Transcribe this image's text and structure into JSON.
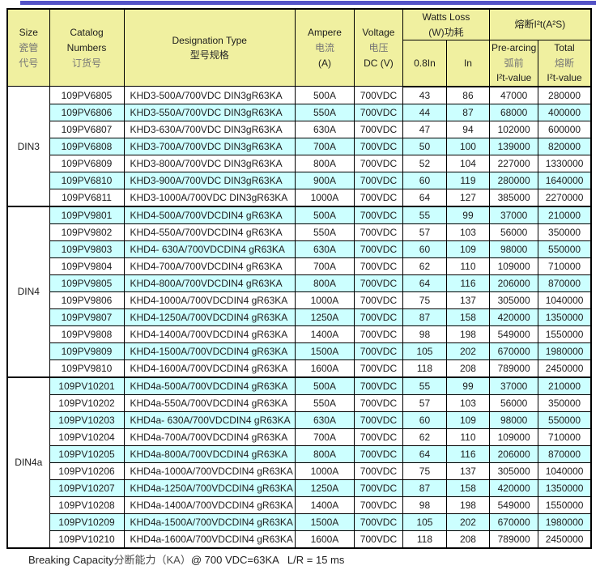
{
  "colors": {
    "top_bar": "#5453C7",
    "header_bg": "#F0F0A0",
    "row_alt_bg": "#CCFFFF",
    "border": "#000000"
  },
  "table": {
    "header": {
      "size": {
        "en": "Size",
        "cn1": "瓷管",
        "cn2": "代号"
      },
      "catalog": {
        "en1": "Catalog",
        "en2": "Numbers",
        "cn": "订货号"
      },
      "designation": {
        "en": "Designation Type",
        "cn": "型号规格"
      },
      "ampere": {
        "en": "Ampere",
        "cn": "电流",
        "unit": "(A)"
      },
      "voltage": {
        "en": "Voltage",
        "cn": "电压",
        "unit": "DC (V)"
      },
      "watts_loss": {
        "en": "Watts Loss",
        "cn": "(W)功耗",
        "sub_08in": "0.8In",
        "sub_in": "In"
      },
      "i2t": {
        "group": "熔断I²t(A²S)",
        "pre_arcing": {
          "en": "Pre-arcing",
          "cn": "弧前",
          "val": "I²t-value"
        },
        "total": {
          "en": "Total",
          "cn": "熔断",
          "val": "I²t-value"
        }
      }
    },
    "groups": [
      {
        "size": "DIN3",
        "rows": [
          [
            "109PV6805",
            "KHD3-500A/700VDC DIN3gR63KA",
            "500A",
            "700VDC",
            "43",
            "86",
            "47000",
            "280000"
          ],
          [
            "109PV6806",
            "KHD3-550A/700VDC DIN3gR63KA",
            "550A",
            "700VDC",
            "44",
            "87",
            "68000",
            "400000"
          ],
          [
            "109PV6807",
            "KHD3-630A/700VDC DIN3gR63KA",
            "630A",
            "700VDC",
            "47",
            "94",
            "102000",
            "600000"
          ],
          [
            "109PV6808",
            "KHD3-700A/700VDC DIN3gR63KA",
            "700A",
            "700VDC",
            "50",
            "100",
            "139000",
            "820000"
          ],
          [
            "109PV6809",
            "KHD3-800A/700VDC DIN3gR63KA",
            "800A",
            "700VDC",
            "52",
            "104",
            "227000",
            "1330000"
          ],
          [
            "109PV6810",
            "KHD3-900A/700VDC DIN3gR63KA",
            "900A",
            "700VDC",
            "60",
            "119",
            "280000",
            "1640000"
          ],
          [
            "109PV6811",
            "KHD3-1000A/700VDC DIN3gR63KA",
            "1000A",
            "700VDC",
            "64",
            "127",
            "385000",
            "2270000"
          ]
        ]
      },
      {
        "size": "DIN4",
        "rows": [
          [
            "109PV9801",
            "KHD4-500A/700VDCDIN4 gR63KA",
            "500A",
            "700VDC",
            "55",
            "99",
            "37000",
            "210000"
          ],
          [
            "109PV9802",
            "KHD4-550A/700VDCDIN4 gR63KA",
            "550A",
            "700VDC",
            "57",
            "103",
            "56000",
            "350000"
          ],
          [
            "109PV9803",
            "KHD4- 630A/700VDCDIN4 gR63KA",
            "630A",
            "700VDC",
            "60",
            "109",
            "98000",
            "550000"
          ],
          [
            "109PV9804",
            "KHD4-700A/700VDCDIN4 gR63KA",
            "700A",
            "700VDC",
            "62",
            "110",
            "109000",
            "710000"
          ],
          [
            "109PV9805",
            "KHD4-800A/700VDCDIN4 gR63KA",
            "800A",
            "700VDC",
            "64",
            "116",
            "206000",
            "870000"
          ],
          [
            "109PV9806",
            "KHD4-1000A/700VDCDIN4 gR63KA",
            "1000A",
            "700VDC",
            "75",
            "137",
            "305000",
            "1040000"
          ],
          [
            "109PV9807",
            "KHD4-1250A/700VDCDIN4 gR63KA",
            "1250A",
            "700VDC",
            "87",
            "158",
            "420000",
            "1350000"
          ],
          [
            "109PV9808",
            "KHD4-1400A/700VDCDIN4 gR63KA",
            "1400A",
            "700VDC",
            "98",
            "198",
            "549000",
            "1550000"
          ],
          [
            "109PV9809",
            "KHD4-1500A/700VDCDIN4 gR63KA",
            "1500A",
            "700VDC",
            "105",
            "202",
            "670000",
            "1980000"
          ],
          [
            "109PV9810",
            "KHD4-1600A/700VDCDIN4 gR63KA",
            "1600A",
            "700VDC",
            "118",
            "208",
            "789000",
            "2450000"
          ]
        ]
      },
      {
        "size": "DIN4a",
        "rows": [
          [
            "109PV10201",
            "KHD4a-500A/700VDCDIN4 gR63KA",
            "500A",
            "700VDC",
            "55",
            "99",
            "37000",
            "210000"
          ],
          [
            "109PV10202",
            "KHD4a-550A/700VDCDIN4 gR63KA",
            "550A",
            "700VDC",
            "57",
            "103",
            "56000",
            "350000"
          ],
          [
            "109PV10203",
            "KHD4a- 630A/700VDCDIN4 gR63KA",
            "630A",
            "700VDC",
            "60",
            "109",
            "98000",
            "550000"
          ],
          [
            "109PV10204",
            "KHD4a-700A/700VDCDIN4 gR63KA",
            "700A",
            "700VDC",
            "62",
            "110",
            "109000",
            "710000"
          ],
          [
            "109PV10205",
            "KHD4a-800A/700VDCDIN4 gR63KA",
            "800A",
            "700VDC",
            "64",
            "116",
            "206000",
            "870000"
          ],
          [
            "109PV10206",
            "KHD4a-1000A/700VDCDIN4 gR63KA",
            "1000A",
            "700VDC",
            "75",
            "137",
            "305000",
            "1040000"
          ],
          [
            "109PV10207",
            "KHD4a-1250A/700VDCDIN4 gR63KA",
            "1250A",
            "700VDC",
            "87",
            "158",
            "420000",
            "1350000"
          ],
          [
            "109PV10208",
            "KHD4a-1400A/700VDCDIN4 gR63KA",
            "1400A",
            "700VDC",
            "98",
            "198",
            "549000",
            "1550000"
          ],
          [
            "109PV10209",
            "KHD4a-1500A/700VDCDIN4 gR63KA",
            "1500A",
            "700VDC",
            "105",
            "202",
            "670000",
            "1980000"
          ],
          [
            "109PV10210",
            "KHD4a-1600A/700VDCDIN4 gR63KA",
            "1600A",
            "700VDC",
            "118",
            "208",
            "789000",
            "2450000"
          ]
        ]
      }
    ]
  },
  "footer": {
    "en1": "Breaking Capacity",
    "cn": "分断能力（KA）",
    "en2": "@ 700 VDC=63KA   L/R = 15 ms"
  }
}
